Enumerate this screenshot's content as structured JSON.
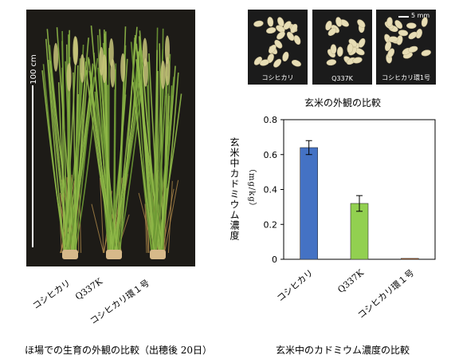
{
  "photo": {
    "scale_label": "100 cm",
    "varieties": [
      "コシヒカリ",
      "Q337K",
      "コシヒカリ環１号"
    ],
    "caption": "ほ場での生育の外観の比較（出穂後 20日）"
  },
  "grain_photo": {
    "labels": [
      "コシヒカリ",
      "Q337K",
      "コシヒカリ環1号"
    ],
    "scale_label": "5 mm",
    "caption": "玄米の外観の比較"
  },
  "chart_caption": "玄米中のカドミウム濃度の比較",
  "chart_data": {
    "type": "bar",
    "categories": [
      "コシヒカリ",
      "Q337K",
      "コシヒカリ環１号"
    ],
    "values": [
      0.64,
      0.32,
      0.005
    ],
    "errors": [
      0.04,
      0.045,
      0.0
    ],
    "colors": [
      "#4472c4",
      "#92d050",
      "#c55a11"
    ],
    "ylabel": "玄米中カドミウム濃度",
    "ylabel_unit": "（mg/kg）",
    "ylim": [
      0,
      0.8
    ],
    "yticks": [
      "0",
      "0.2",
      "0.4",
      "0.6",
      "0.8"
    ],
    "grid": false
  }
}
